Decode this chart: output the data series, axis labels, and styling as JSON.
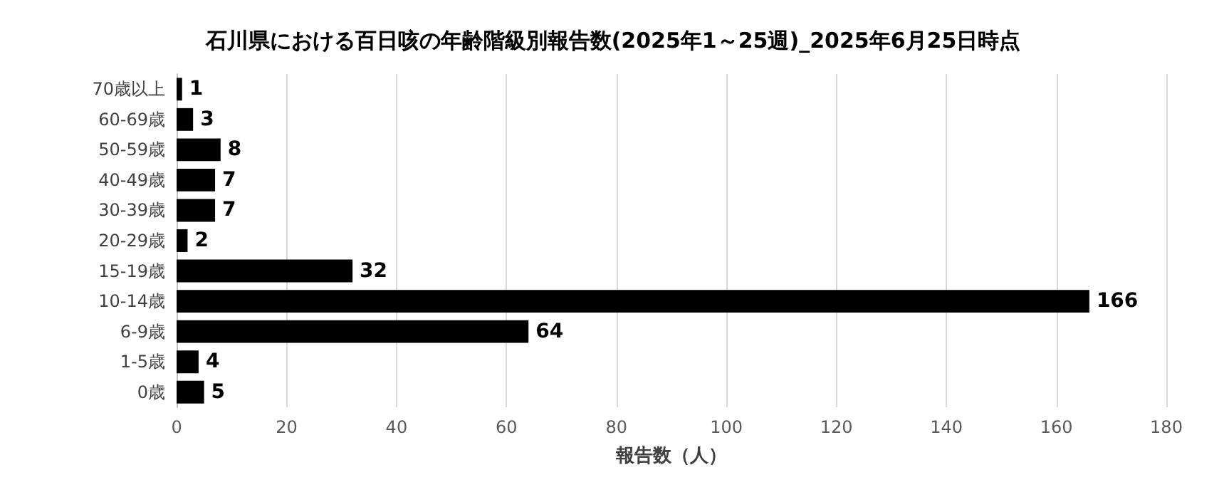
{
  "chart_data": {
    "type": "bar",
    "orientation": "horizontal",
    "title": "石川県における百日咳の年齢階級別報告数(2025年1～25週)_2025年6月25日時点",
    "xlabel": "報告数（人）",
    "categories": [
      "70歳以上",
      "60-69歳",
      "50-59歳",
      "40-49歳",
      "30-39歳",
      "20-29歳",
      "15-19歳",
      "10-14歳",
      "6-9歳",
      "1-5歳",
      "0歳"
    ],
    "values": [
      1,
      3,
      8,
      7,
      7,
      2,
      32,
      166,
      64,
      4,
      5
    ],
    "color": "#000000",
    "xlim": [
      0,
      180
    ],
    "xticks": [
      0,
      20,
      40,
      60,
      80,
      100,
      120,
      140,
      160,
      180
    ],
    "grid": "x",
    "data_labels": true
  }
}
